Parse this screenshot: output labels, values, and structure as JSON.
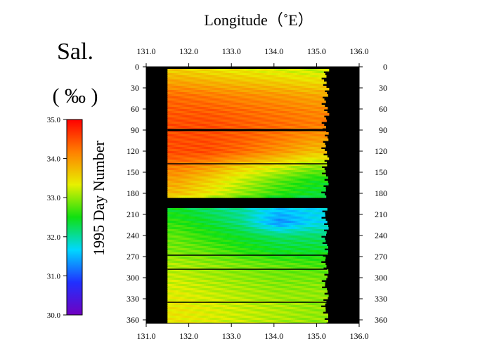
{
  "chart_data": {
    "type": "heatmap",
    "title": "Longitude（˚E）",
    "xlabel": "Longitude（˚E）",
    "ylabel": "1995  Day Number",
    "xlim": [
      131.0,
      136.0
    ],
    "ylim": [
      0,
      365
    ],
    "x_ticks": [
      "131.0",
      "132.0",
      "133.0",
      "134.0",
      "135.0",
      "136.0"
    ],
    "y_ticks": [
      "0",
      "30",
      "60",
      "90",
      "120",
      "150",
      "180",
      "210",
      "240",
      "270",
      "300",
      "330",
      "360"
    ],
    "y_inverted": true,
    "colorbar": {
      "title": "Sal.",
      "unit": "( ‰ )",
      "range": [
        30.0,
        35.0
      ],
      "ticks": [
        "35.0",
        "34.0",
        "33.0",
        "32.0",
        "31.0",
        "30.0"
      ],
      "colors": [
        "#7000c0",
        "#2030ff",
        "#00d8ff",
        "#10e010",
        "#e8f000",
        "#ff8000",
        "#ff0000"
      ]
    },
    "background_color": "#000000",
    "data_extent": {
      "lon_min": 131.5,
      "lon_max": 135.2,
      "no_data_days": [
        [
          184,
          198
        ]
      ]
    },
    "salinity_profile": [
      {
        "day": 5,
        "values": [
          33.6,
          33.5,
          33.4,
          33.3,
          33.2
        ]
      },
      {
        "day": 20,
        "values": [
          33.9,
          33.8,
          33.7,
          33.6,
          33.5
        ]
      },
      {
        "day": 40,
        "values": [
          34.3,
          34.2,
          34.1,
          34.0,
          33.9
        ]
      },
      {
        "day": 60,
        "values": [
          34.4,
          34.4,
          34.3,
          34.2,
          34.1
        ]
      },
      {
        "day": 80,
        "values": [
          34.5,
          34.5,
          34.4,
          34.3,
          34.2
        ]
      },
      {
        "day": 100,
        "values": [
          34.5,
          34.5,
          34.4,
          34.2,
          34.0
        ]
      },
      {
        "day": 120,
        "values": [
          34.5,
          34.5,
          34.3,
          34.0,
          33.7
        ]
      },
      {
        "day": 140,
        "values": [
          34.2,
          34.0,
          33.6,
          33.3,
          33.0
        ]
      },
      {
        "day": 160,
        "values": [
          33.9,
          33.6,
          33.2,
          32.8,
          32.5
        ]
      },
      {
        "day": 180,
        "values": [
          33.7,
          33.4,
          33.0,
          32.6,
          32.4
        ]
      },
      {
        "day": 200,
        "values": [
          32.4,
          32.2,
          32.0,
          31.6,
          31.7
        ]
      },
      {
        "day": 220,
        "values": [
          32.6,
          32.4,
          32.1,
          31.3,
          31.7
        ]
      },
      {
        "day": 240,
        "values": [
          32.8,
          32.6,
          32.4,
          32.2,
          32.2
        ]
      },
      {
        "day": 260,
        "values": [
          32.9,
          32.8,
          32.6,
          32.4,
          32.4
        ]
      },
      {
        "day": 280,
        "values": [
          33.1,
          33.0,
          32.9,
          32.8,
          32.7
        ]
      },
      {
        "day": 300,
        "values": [
          33.2,
          33.1,
          33.0,
          32.9,
          32.9
        ]
      },
      {
        "day": 320,
        "values": [
          33.3,
          33.2,
          33.1,
          33.0,
          33.0
        ]
      },
      {
        "day": 340,
        "values": [
          33.4,
          33.3,
          33.2,
          33.1,
          33.0
        ]
      },
      {
        "day": 360,
        "values": [
          33.4,
          33.3,
          33.2,
          33.1,
          33.0
        ]
      }
    ],
    "profile_longitudes": [
      131.7,
      132.4,
      133.2,
      134.1,
      134.9
    ],
    "gap_days": [
      90,
      138,
      268,
      288,
      335
    ]
  }
}
